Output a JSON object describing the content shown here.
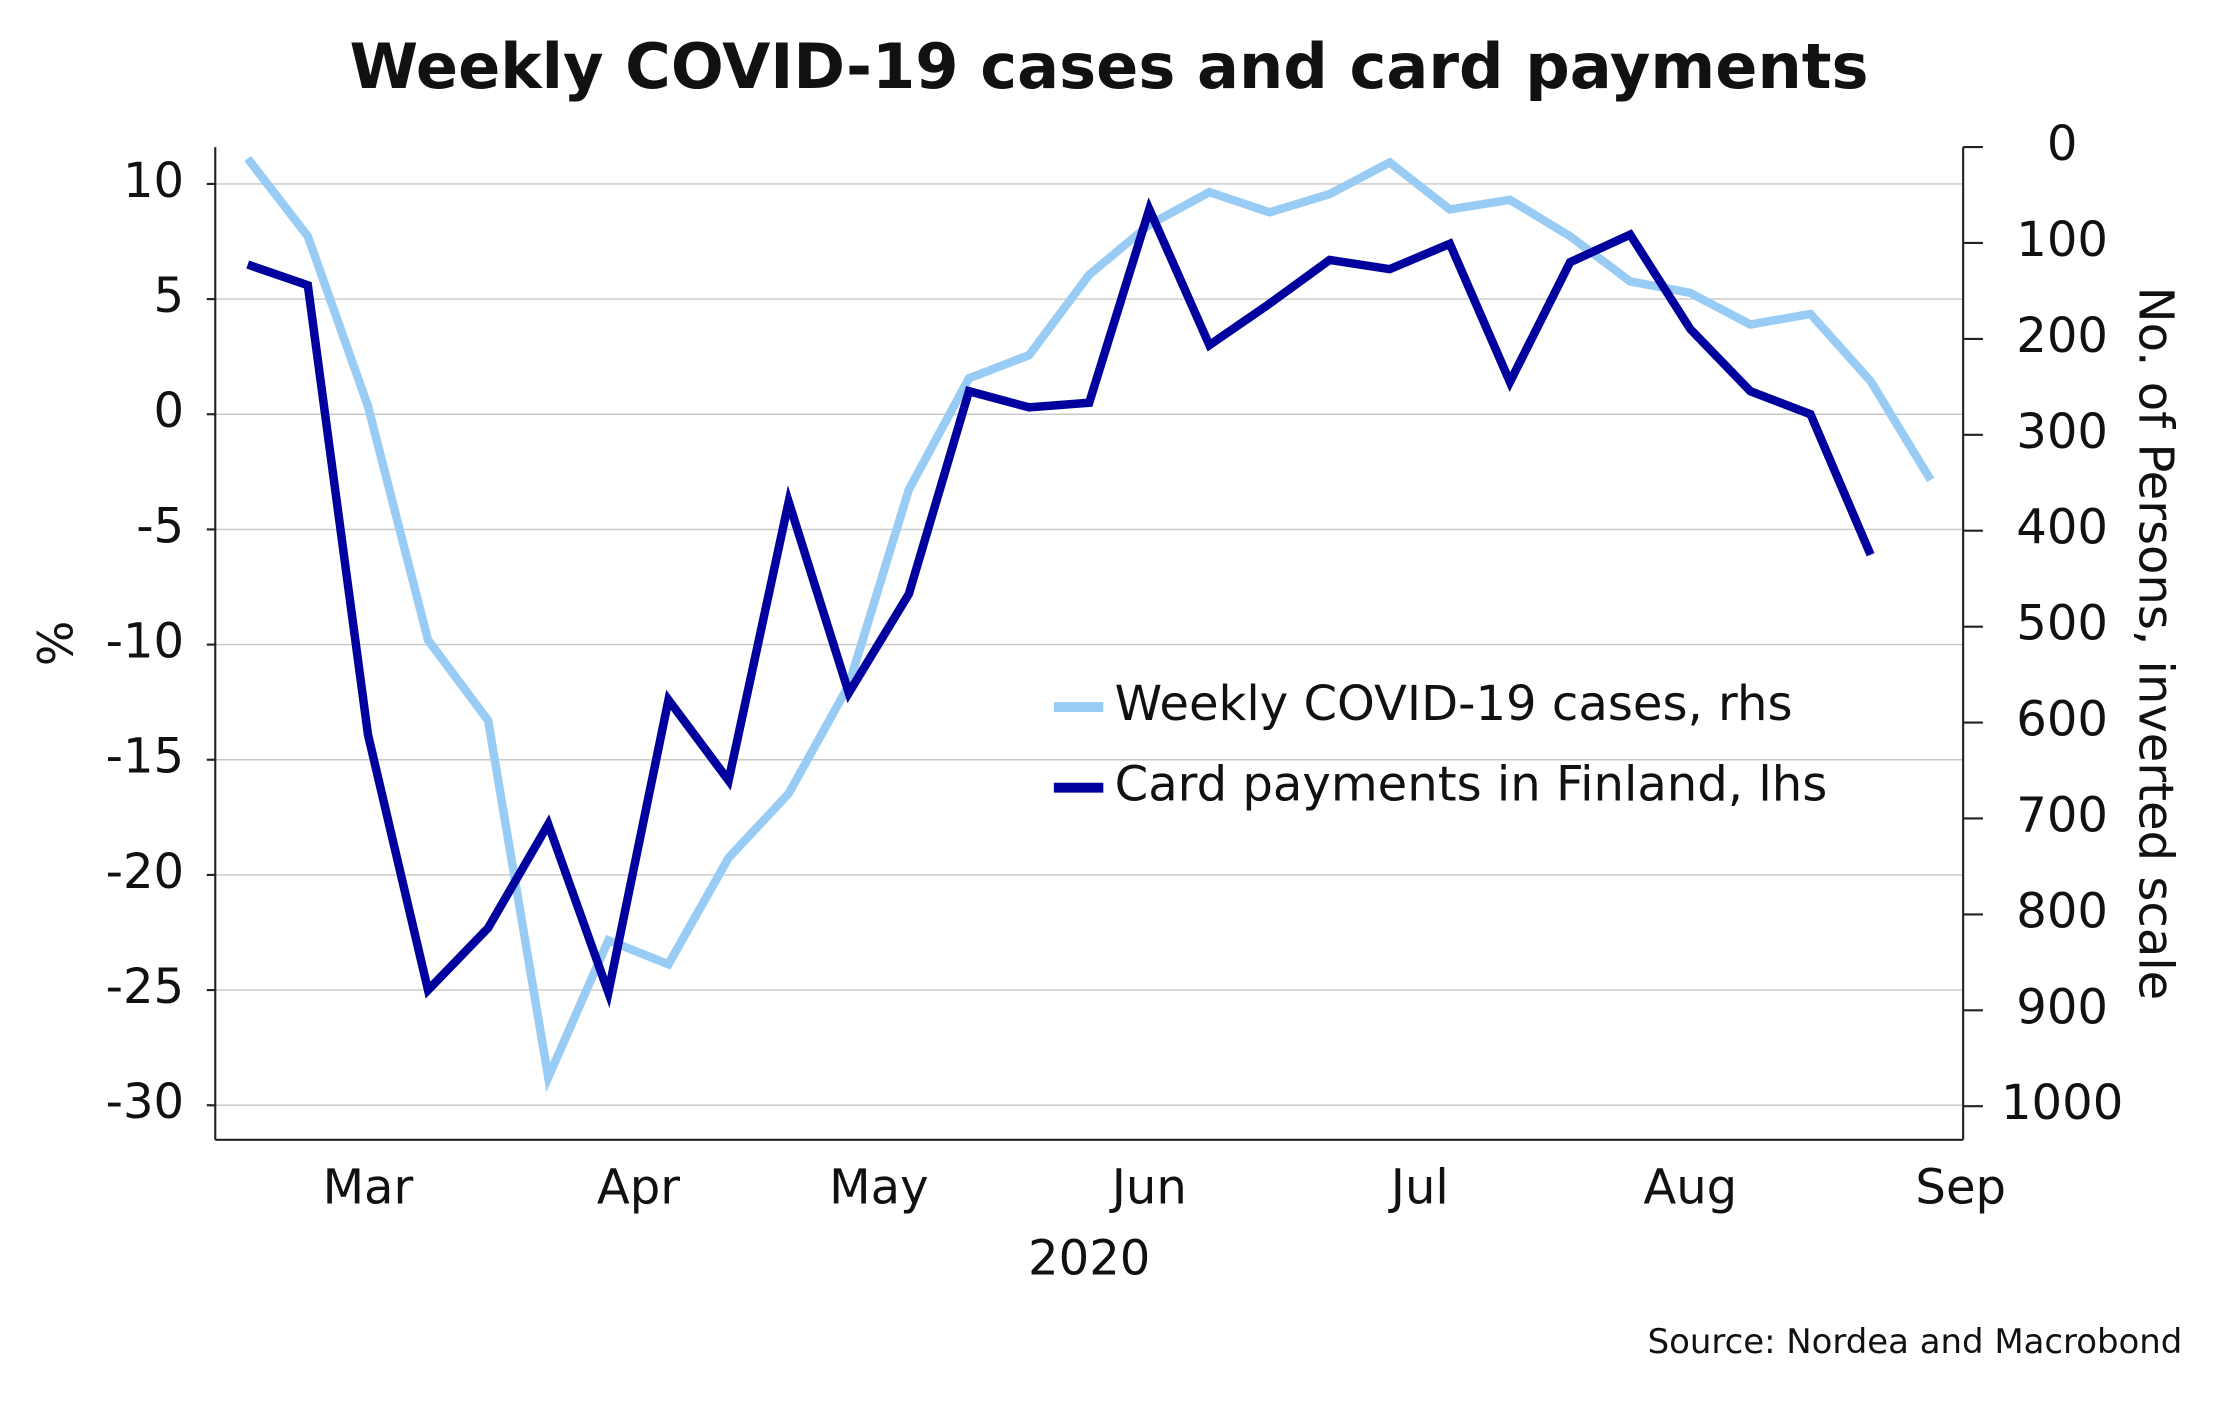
{
  "chart_data": {
    "type": "line",
    "title": "Weekly COVID-19 cases and card payments",
    "y_label": "%",
    "y2_label": "No. of Persons, inverted scale",
    "x_label": "2020",
    "source": "Source: Nordea and Macrobond",
    "categories": [
      null,
      null,
      null,
      null,
      null,
      null,
      null,
      null,
      null,
      null,
      null,
      null,
      null,
      null,
      null,
      null,
      null,
      null,
      null,
      null,
      null,
      null,
      null,
      null,
      null,
      null,
      null,
      null,
      null
    ],
    "xticks": [
      {
        "value": 2,
        "label": "Mar"
      },
      {
        "value": 6.5,
        "label": "Apr"
      },
      {
        "value": 10.5,
        "label": "May"
      },
      {
        "value": 15,
        "label": "Jun"
      },
      {
        "value": 19.5,
        "label": "Jul"
      },
      {
        "value": 24,
        "label": "Aug"
      },
      {
        "value": 28.5,
        "label": "Sep"
      }
    ],
    "xlim": [
      -0.54,
      28.54
    ],
    "ylim": [
      -31.5,
      11.6
    ],
    "yticks": [
      10,
      5,
      0,
      -5,
      -10,
      -15,
      -20,
      -25,
      -30
    ],
    "y2lim": [
      0,
      1035
    ],
    "y2_inverted": true,
    "y2ticks": [
      0,
      100,
      200,
      300,
      400,
      500,
      600,
      700,
      800,
      900,
      1000
    ],
    "grid": true,
    "series": [
      {
        "name": "Weekly COVID-19 cases, rhs",
        "color": "#99ccf5",
        "axis": "y2",
        "values": [
          12,
          93,
          270,
          514,
          598,
          970,
          827,
          852,
          741,
          674,
          561,
          357,
          241,
          217,
          133,
          81,
          47,
          68,
          49,
          16,
          65,
          55,
          93,
          140,
          152,
          185,
          174,
          244,
          347
        ]
      },
      {
        "name": "Card payments in Finland, lhs",
        "color": "#00009e",
        "values": [
          6.5,
          5.6,
          -13.9,
          -25.0,
          -22.3,
          -17.8,
          -25.1,
          -12.4,
          -15.9,
          -3.8,
          -12.1,
          -7.8,
          1.0,
          0.3,
          0.5,
          8.9,
          3.0,
          4.8,
          6.7,
          6.3,
          7.4,
          1.4,
          6.6,
          7.8,
          3.7,
          1.0,
          0.0,
          -6.1,
          null
        ]
      }
    ]
  }
}
